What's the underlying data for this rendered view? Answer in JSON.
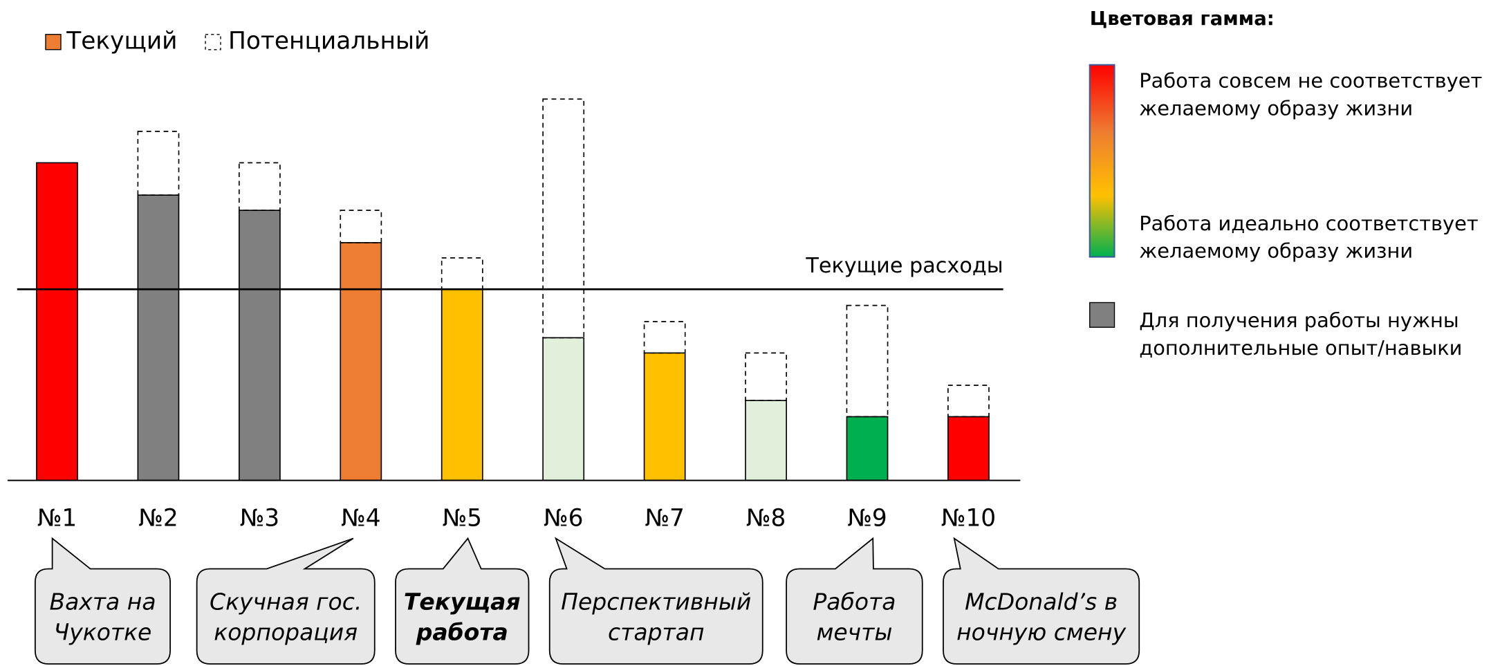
{
  "chart_data": {
    "type": "bar",
    "stacked": true,
    "categories": [
      "№1",
      "№2",
      "№3",
      "№4",
      "№5",
      "№6",
      "№7",
      "№8",
      "№9",
      "№10"
    ],
    "ylim": [
      0,
      420
    ],
    "series": [
      {
        "name": "Текущий",
        "color": "#ed7d31",
        "colors": [
          "#ff0000",
          "#808080",
          "#808080",
          "#ed7d31",
          "#ffc000",
          "#e2efda",
          "#ffc000",
          "#e2efda",
          "#00b050",
          "#ff0000"
        ],
        "values": [
          334,
          300,
          284,
          250,
          201,
          150,
          134,
          84,
          67,
          67
        ]
      },
      {
        "name": "Потенциальный",
        "color": "none",
        "dashed": true,
        "values": [
          null,
          67,
          50,
          34,
          33,
          251,
          33,
          50,
          117,
          33
        ]
      }
    ],
    "reference_line": {
      "value": 201,
      "label": "Текущие расходы"
    },
    "annotations": [
      {
        "category": 0,
        "lines": [
          "Вахта на",
          "Чукотке"
        ],
        "bold": false
      },
      {
        "category": 3,
        "lines": [
          "Скучная гос.",
          "корпорация"
        ],
        "bold": false
      },
      {
        "category": 4,
        "lines": [
          "Текущая",
          "работа"
        ],
        "bold": true
      },
      {
        "category": 5,
        "lines": [
          "Перспективный",
          "стартап"
        ],
        "bold": false
      },
      {
        "category": 8,
        "lines": [
          "Работа",
          "мечты"
        ],
        "bold": false
      },
      {
        "category": 9,
        "lines": [
          "McDonald’s в",
          "ночную смену"
        ],
        "bold": false
      }
    ],
    "color_legend": {
      "title": "Цветовая гамма:",
      "gradient_top": [
        "Работа совсем не соответствует",
        "желаемому образу жизни"
      ],
      "gradient_bottom": [
        "Работа идеально соответствует",
        "желаемому образу жизни"
      ],
      "gray": [
        "Для получения работы нужны",
        "дополнительные опыт/навыки"
      ],
      "gray_color": "#808080"
    }
  }
}
